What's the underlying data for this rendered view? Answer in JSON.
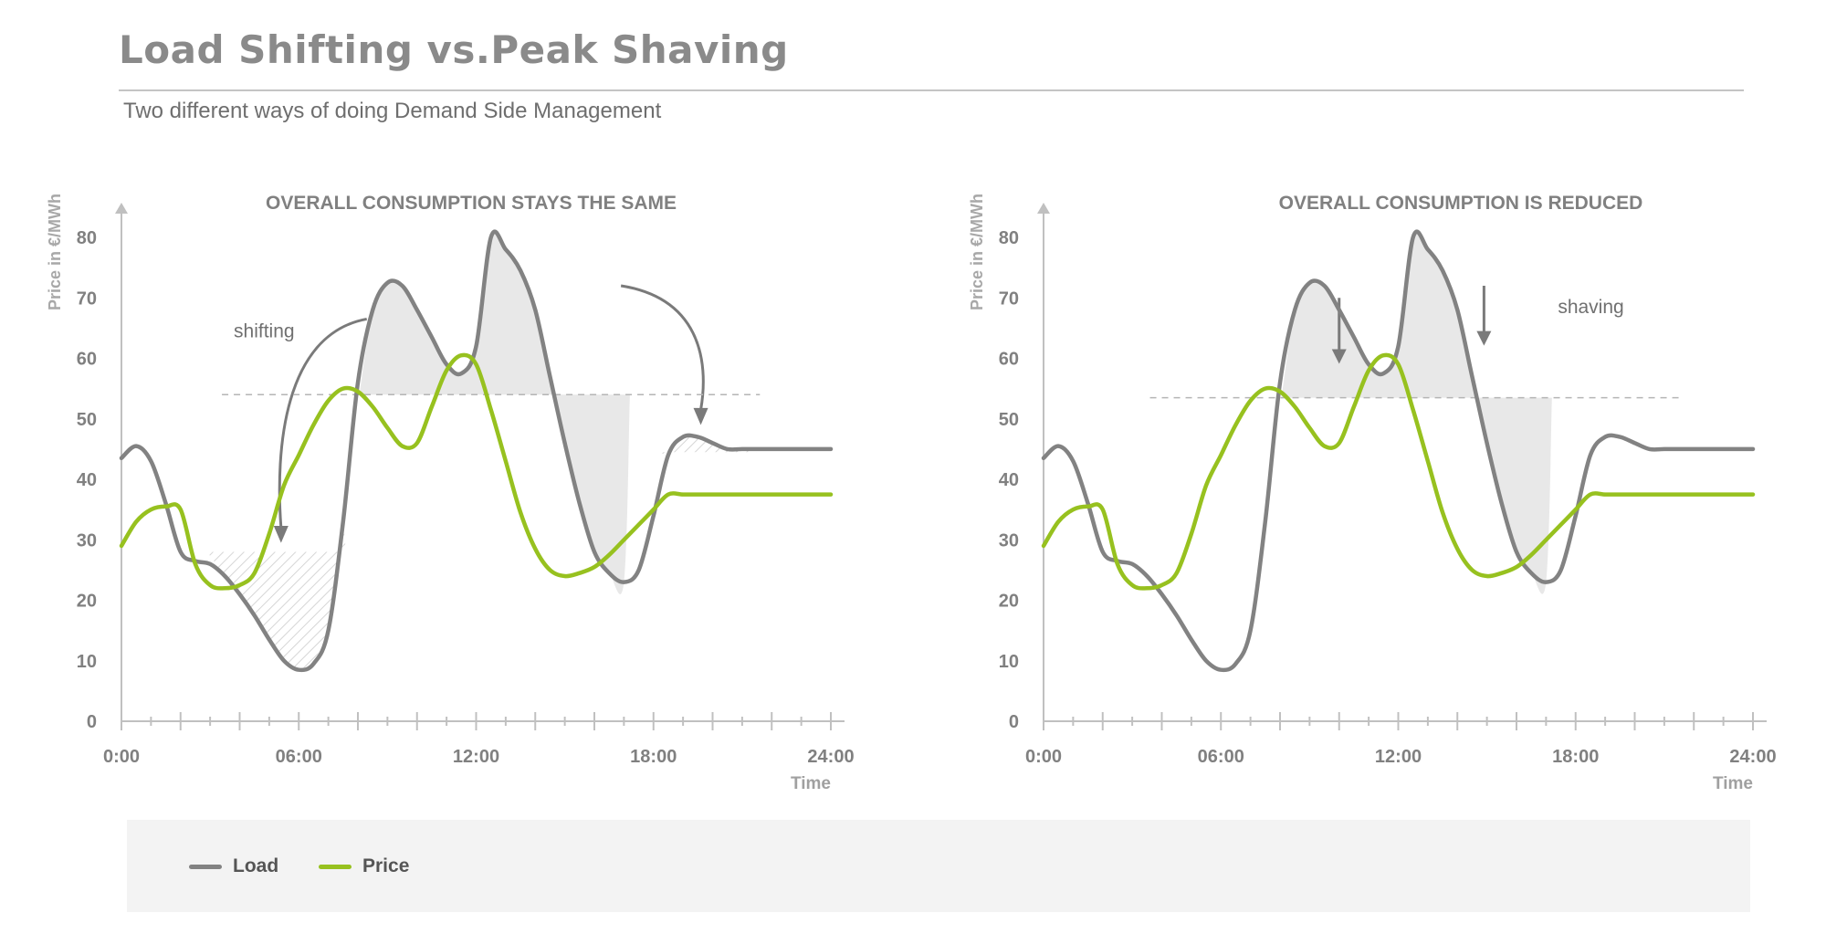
{
  "header": {
    "title": "Load Shifting vs.Peak Shaving",
    "subtitle": "Two different ways of doing Demand Side Management"
  },
  "colors": {
    "load": "#828282",
    "price": "#97c11f",
    "axis": "#c0c0c0",
    "text": "#808080",
    "fill": "#e8e8e8",
    "hatch": "#d9d9d9",
    "threshold": "#b5b5b5"
  },
  "legend": {
    "load": "Load",
    "price": "Price"
  },
  "chart_data": [
    {
      "type": "line",
      "title": "OVERALL CONSUMPTION STAYS THE SAME",
      "ylabel": "Price in €/MWh",
      "xlabel": "Time",
      "xlim": [
        0,
        24
      ],
      "ylim": [
        0,
        80
      ],
      "x_ticks": [
        "0:00",
        "06:00",
        "12:00",
        "18:00",
        "24:00"
      ],
      "y_ticks": [
        0,
        10,
        20,
        30,
        40,
        50,
        60,
        70,
        80
      ],
      "threshold": 54,
      "annotation": "shifting",
      "series": [
        {
          "name": "Load",
          "x": [
            0,
            0.5,
            1,
            1.5,
            2,
            2.5,
            3,
            3.5,
            4,
            4.5,
            5,
            5.5,
            6,
            6.5,
            7,
            7.5,
            8,
            8.5,
            9,
            9.5,
            10,
            10.5,
            11,
            11.5,
            12,
            12.5,
            13,
            13.5,
            14,
            14.5,
            15,
            15.5,
            16,
            16.5,
            17,
            17.5,
            18,
            18.5,
            19,
            19.5,
            20,
            20.5,
            21,
            21.5,
            22,
            22.5,
            23,
            23.5,
            24
          ],
          "values": [
            43.5,
            45.5,
            43,
            36,
            28,
            26.5,
            26,
            24,
            21,
            17.5,
            13.5,
            10,
            8.5,
            9.5,
            15,
            33,
            56,
            68,
            72.5,
            72,
            68,
            63.5,
            59,
            57.5,
            62,
            80,
            78,
            74.5,
            68,
            57,
            46,
            36,
            28,
            24.5,
            23,
            25,
            34,
            44,
            47,
            47,
            46,
            45,
            45,
            45,
            45,
            45,
            45,
            45,
            45
          ]
        },
        {
          "name": "Price",
          "x": [
            0,
            0.5,
            1,
            1.5,
            2,
            2.5,
            3,
            3.5,
            4,
            4.5,
            5,
            5.5,
            6,
            6.5,
            7,
            7.5,
            8,
            8.5,
            9,
            9.5,
            10,
            10.5,
            11,
            11.5,
            12,
            12.5,
            13,
            13.5,
            14,
            14.5,
            15,
            15.5,
            16,
            16.5,
            17,
            17.5,
            18,
            18.5,
            19,
            19.5,
            20,
            20.5,
            21,
            21.5,
            22,
            22.5,
            23,
            23.5,
            24
          ],
          "values": [
            29,
            33,
            35,
            35.5,
            35,
            26,
            22.5,
            22,
            22.5,
            24.5,
            31,
            39,
            44,
            49,
            53,
            55,
            54.5,
            52,
            48.5,
            45.5,
            46,
            52,
            58,
            60.5,
            59,
            51.5,
            43,
            34.5,
            28.5,
            25,
            24,
            24.5,
            25.5,
            27.5,
            30,
            32.5,
            35,
            37.5,
            37.5,
            37.5,
            37.5,
            37.5,
            37.5,
            37.5,
            37.5,
            37.5,
            37.5,
            37.5,
            37.5
          ]
        }
      ]
    },
    {
      "type": "line",
      "title": "OVERALL CONSUMPTION IS REDUCED",
      "ylabel": "Price in €/MWh",
      "xlabel": "Time",
      "xlim": [
        0,
        24
      ],
      "ylim": [
        0,
        80
      ],
      "x_ticks": [
        "0:00",
        "06:00",
        "12:00",
        "18:00",
        "24:00"
      ],
      "y_ticks": [
        0,
        10,
        20,
        30,
        40,
        50,
        60,
        70,
        80
      ],
      "threshold": 53.5,
      "annotation": "shaving",
      "series": [
        {
          "name": "Load",
          "x": [
            0,
            0.5,
            1,
            1.5,
            2,
            2.5,
            3,
            3.5,
            4,
            4.5,
            5,
            5.5,
            6,
            6.5,
            7,
            7.5,
            8,
            8.5,
            9,
            9.5,
            10,
            10.5,
            11,
            11.5,
            12,
            12.5,
            13,
            13.5,
            14,
            14.5,
            15,
            15.5,
            16,
            16.5,
            17,
            17.5,
            18,
            18.5,
            19,
            19.5,
            20,
            20.5,
            21,
            21.5,
            22,
            22.5,
            23,
            23.5,
            24
          ],
          "values": [
            43.5,
            45.5,
            43,
            36,
            28,
            26.5,
            26,
            24,
            21,
            17.5,
            13.5,
            10,
            8.5,
            9.5,
            15,
            33,
            56,
            68,
            72.5,
            72,
            68,
            63.5,
            59,
            57.5,
            62,
            80,
            78,
            74.5,
            68,
            57,
            46,
            36,
            28,
            24.5,
            23,
            25,
            34,
            44,
            47,
            47,
            46,
            45,
            45,
            45,
            45,
            45,
            45,
            45,
            45
          ]
        },
        {
          "name": "Price",
          "x": [
            0,
            0.5,
            1,
            1.5,
            2,
            2.5,
            3,
            3.5,
            4,
            4.5,
            5,
            5.5,
            6,
            6.5,
            7,
            7.5,
            8,
            8.5,
            9,
            9.5,
            10,
            10.5,
            11,
            11.5,
            12,
            12.5,
            13,
            13.5,
            14,
            14.5,
            15,
            15.5,
            16,
            16.5,
            17,
            17.5,
            18,
            18.5,
            19,
            19.5,
            20,
            20.5,
            21,
            21.5,
            22,
            22.5,
            23,
            23.5,
            24
          ],
          "values": [
            29,
            33,
            35,
            35.5,
            35,
            26,
            22.5,
            22,
            22.5,
            24.5,
            31,
            39,
            44,
            49,
            53,
            55,
            54.5,
            52,
            48.5,
            45.5,
            46,
            52,
            58,
            60.5,
            59,
            51.5,
            43,
            34.5,
            28.5,
            25,
            24,
            24.5,
            25.5,
            27.5,
            30,
            32.5,
            35,
            37.5,
            37.5,
            37.5,
            37.5,
            37.5,
            37.5,
            37.5,
            37.5,
            37.5,
            37.5,
            37.5,
            37.5
          ]
        }
      ]
    }
  ]
}
